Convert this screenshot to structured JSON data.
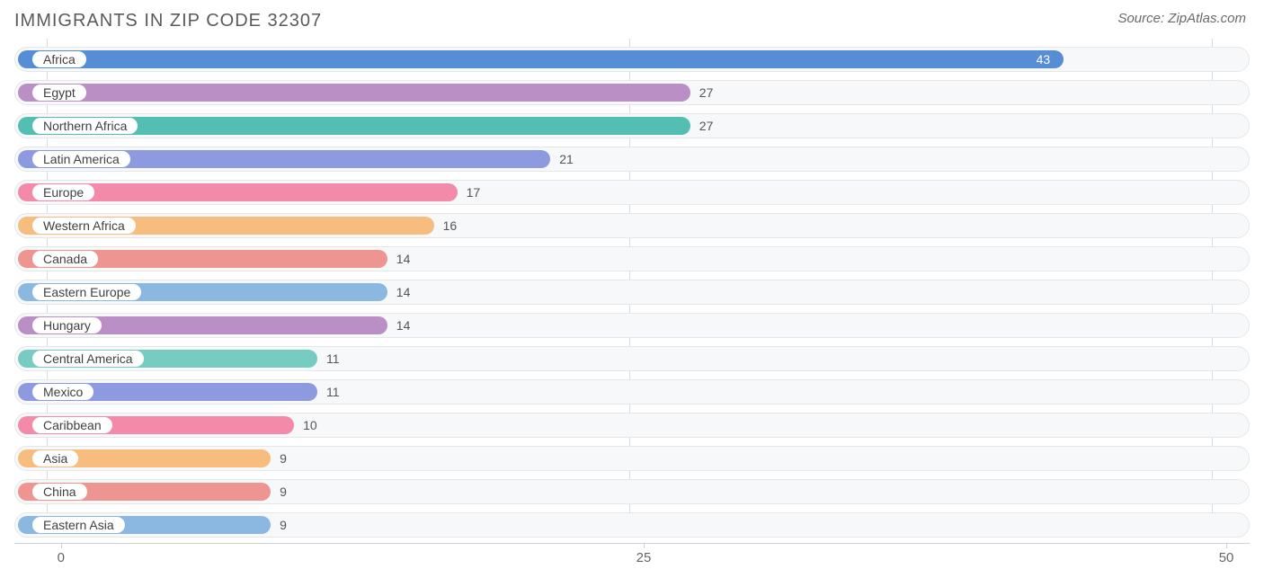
{
  "header": {
    "title": "IMMIGRANTS IN ZIP CODE 32307",
    "source": "Source: ZipAtlas.com"
  },
  "chart": {
    "type": "bar-horizontal",
    "x_min": -2,
    "x_max": 51,
    "ticks": [
      0,
      25,
      50
    ],
    "track_bg": "#f7f8f9",
    "track_border": "#e5e6e8",
    "grid_color": "#d8dadd",
    "label_pill_bg": "#ffffff",
    "value_color_outside": "#555555",
    "value_color_inside": "#ffffff",
    "title_color": "#5a5a5a",
    "source_color": "#6a6a6a",
    "bars": [
      {
        "label": "Africa",
        "value": 43,
        "color": "#558ed5",
        "value_inside": true
      },
      {
        "label": "Egypt",
        "value": 27,
        "color": "#b98fc6",
        "value_inside": false
      },
      {
        "label": "Northern Africa",
        "value": 27,
        "color": "#54beb3",
        "value_inside": false
      },
      {
        "label": "Latin America",
        "value": 21,
        "color": "#8e9ae0",
        "value_inside": false
      },
      {
        "label": "Europe",
        "value": 17,
        "color": "#f48aa9",
        "value_inside": false
      },
      {
        "label": "Western Africa",
        "value": 16,
        "color": "#f6bd7f",
        "value_inside": false
      },
      {
        "label": "Canada",
        "value": 14,
        "color": "#ee9591",
        "value_inside": false
      },
      {
        "label": "Eastern Europe",
        "value": 14,
        "color": "#8ab8e0",
        "value_inside": false
      },
      {
        "label": "Hungary",
        "value": 14,
        "color": "#b98fc6",
        "value_inside": false
      },
      {
        "label": "Central America",
        "value": 11,
        "color": "#76ccc0",
        "value_inside": false
      },
      {
        "label": "Mexico",
        "value": 11,
        "color": "#8e9ae0",
        "value_inside": false
      },
      {
        "label": "Caribbean",
        "value": 10,
        "color": "#f48aa9",
        "value_inside": false
      },
      {
        "label": "Asia",
        "value": 9,
        "color": "#f6bd7f",
        "value_inside": false
      },
      {
        "label": "China",
        "value": 9,
        "color": "#ee9591",
        "value_inside": false
      },
      {
        "label": "Eastern Asia",
        "value": 9,
        "color": "#8ab8e0",
        "value_inside": false
      }
    ]
  }
}
